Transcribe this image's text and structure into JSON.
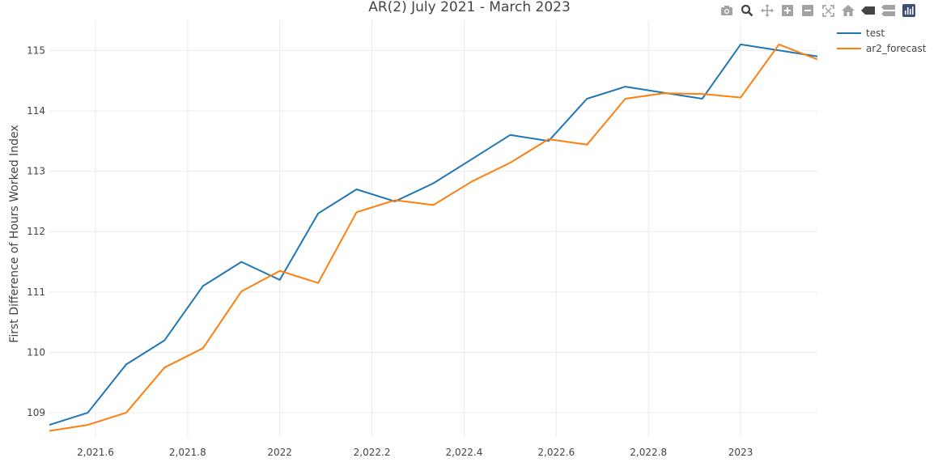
{
  "chart_data": {
    "type": "line",
    "title": "AR(2) July 2021 - March 2023",
    "xlabel": "",
    "ylabel": "First Difference of Hours Worked Index",
    "xlim": [
      2021.5,
      2023.1667
    ],
    "ylim": [
      108.6,
      115.5
    ],
    "x_ticks": [
      {
        "value": 2021.6,
        "label": "2,021.6"
      },
      {
        "value": 2021.8,
        "label": "2,021.8"
      },
      {
        "value": 2022.0,
        "label": "2022"
      },
      {
        "value": 2022.2,
        "label": "2,022.2"
      },
      {
        "value": 2022.4,
        "label": "2,022.4"
      },
      {
        "value": 2022.6,
        "label": "2,022.6"
      },
      {
        "value": 2022.8,
        "label": "2,022.8"
      },
      {
        "value": 2023.0,
        "label": "2023"
      }
    ],
    "y_ticks": [
      109,
      110,
      111,
      112,
      113,
      114,
      115
    ],
    "grid": true,
    "legend_position": "top-right",
    "x": [
      2021.5,
      2021.5833,
      2021.6667,
      2021.75,
      2021.8333,
      2021.9167,
      2022.0,
      2022.0833,
      2022.1667,
      2022.25,
      2022.3333,
      2022.4167,
      2022.5,
      2022.5833,
      2022.6667,
      2022.75,
      2022.8333,
      2022.9167,
      2023.0,
      2023.0833,
      2023.1667
    ],
    "series": [
      {
        "name": "test",
        "color": "#1f77b4",
        "values": [
          108.8,
          109.0,
          109.8,
          110.2,
          111.1,
          111.5,
          111.2,
          112.3,
          112.7,
          112.5,
          112.8,
          113.2,
          113.6,
          113.5,
          114.2,
          114.4,
          114.3,
          114.2,
          115.1,
          115.0,
          114.9
        ]
      },
      {
        "name": "ar2_forecast",
        "color": "#ff7f0e",
        "values": [
          108.7,
          108.8,
          109.0,
          109.75,
          110.07,
          111.01,
          111.35,
          111.15,
          112.32,
          112.52,
          112.44,
          112.83,
          113.14,
          113.53,
          113.44,
          114.2,
          114.29,
          114.28,
          114.22,
          115.1,
          114.85
        ]
      }
    ]
  },
  "toolbar": {
    "icons": [
      "camera-icon",
      "zoom-icon",
      "pan-icon",
      "zoom-in-icon",
      "zoom-out-icon",
      "autoscale-icon",
      "reset-axes-icon",
      "hover-closest-icon",
      "hover-compare-icon",
      "plotly-logo-icon"
    ]
  },
  "colors": {
    "grid": "#ebebeb",
    "axis_text": "#444444",
    "icon": "#a3a3a3",
    "logo": "#3f4f75"
  }
}
